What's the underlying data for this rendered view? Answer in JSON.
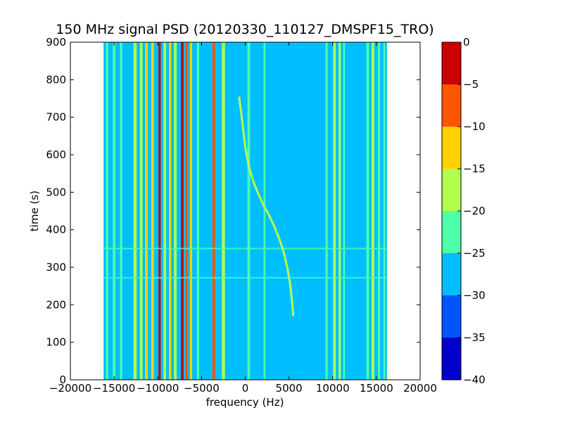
{
  "chart_data": {
    "type": "heatmap",
    "title": "150 MHz signal PSD (20120330_110127_DMSPF15_TRO)",
    "xlabel": "frequency (Hz)",
    "ylabel": "time (s)",
    "xlim": [
      -20000,
      20000
    ],
    "ylim": [
      0,
      900
    ],
    "x_ticks": [
      -20000,
      -15000,
      -10000,
      -5000,
      0,
      5000,
      10000,
      15000,
      20000
    ],
    "x_tick_labels": [
      "−20000",
      "−15000",
      "−10000",
      "−5000",
      "0",
      "5000",
      "10000",
      "15000",
      "20000"
    ],
    "y_ticks": [
      0,
      100,
      200,
      300,
      400,
      500,
      600,
      700,
      800,
      900
    ],
    "y_tick_labels": [
      "0",
      "100",
      "200",
      "300",
      "400",
      "500",
      "600",
      "700",
      "800",
      "900"
    ],
    "data_extent_x": [
      -16200,
      16200
    ],
    "background_level": -27.5,
    "vertical_bands": [
      {
        "freq": -15800,
        "width": 250,
        "level": -22.5
      },
      {
        "freq": -15000,
        "width": 300,
        "level": -22.5
      },
      {
        "freq": -14200,
        "width": 250,
        "level": -22.5
      },
      {
        "freq": -12600,
        "width": 350,
        "level": -17.5
      },
      {
        "freq": -11900,
        "width": 300,
        "level": -17.5
      },
      {
        "freq": -11300,
        "width": 300,
        "level": -12.5
      },
      {
        "freq": -10600,
        "width": 300,
        "level": -12.5
      },
      {
        "freq": -9800,
        "width": 250,
        "level": -2.5
      },
      {
        "freq": -9200,
        "width": 300,
        "level": -17.5
      },
      {
        "freq": -8600,
        "width": 250,
        "level": -12.5
      },
      {
        "freq": -8000,
        "width": 300,
        "level": -17.5
      },
      {
        "freq": -7200,
        "width": 300,
        "level": -2.5
      },
      {
        "freq": -6700,
        "width": 300,
        "level": -7.5
      },
      {
        "freq": -6200,
        "width": 250,
        "level": -12.5
      },
      {
        "freq": -5400,
        "width": 250,
        "level": -22.5
      },
      {
        "freq": -3600,
        "width": 300,
        "level": -7.5
      },
      {
        "freq": -2500,
        "width": 350,
        "level": -17.5
      },
      {
        "freq": 400,
        "width": 300,
        "level": -22.5
      },
      {
        "freq": 2200,
        "width": 200,
        "level": -22.5
      },
      {
        "freq": 9300,
        "width": 250,
        "level": -22.5
      },
      {
        "freq": 10200,
        "width": 300,
        "level": -17.5
      },
      {
        "freq": 10800,
        "width": 250,
        "level": -17.5
      },
      {
        "freq": 11300,
        "width": 200,
        "level": -22.5
      },
      {
        "freq": 14000,
        "width": 300,
        "level": -22.5
      },
      {
        "freq": 14600,
        "width": 300,
        "level": -17.5
      },
      {
        "freq": 15300,
        "width": 250,
        "level": -22.5
      },
      {
        "freq": 15900,
        "width": 200,
        "level": -22.5
      }
    ],
    "horizontal_streaks": [
      {
        "time": 272,
        "level": -22.5
      },
      {
        "time": 350,
        "level": -22.5
      }
    ],
    "doppler_trace": {
      "level": -17.5,
      "points": [
        [
          -700,
          755
        ],
        [
          -300,
          680
        ],
        [
          0,
          620
        ],
        [
          400,
          570
        ],
        [
          900,
          530
        ],
        [
          1500,
          495
        ],
        [
          2100,
          465
        ],
        [
          2700,
          440
        ],
        [
          3300,
          410
        ],
        [
          3900,
          375
        ],
        [
          4400,
          340
        ],
        [
          4800,
          300
        ],
        [
          5100,
          260
        ],
        [
          5300,
          220
        ],
        [
          5500,
          170
        ]
      ]
    },
    "colorbar": {
      "min": -40,
      "max": 0,
      "ticks": [
        0,
        -5,
        -10,
        -15,
        -20,
        -25,
        -30,
        -35,
        -40
      ],
      "tick_labels": [
        "0",
        "−5",
        "−10",
        "−15",
        "−20",
        "−25",
        "−30",
        "−35",
        "−40"
      ],
      "levels": [
        {
          "from": -40,
          "to": -35,
          "color": "#0000cc"
        },
        {
          "from": -35,
          "to": -30,
          "color": "#0055ff"
        },
        {
          "from": -30,
          "to": -25,
          "color": "#00bfff"
        },
        {
          "from": -25,
          "to": -20,
          "color": "#4dffaa"
        },
        {
          "from": -20,
          "to": -15,
          "color": "#b3ff4d"
        },
        {
          "from": -15,
          "to": -10,
          "color": "#ffd200"
        },
        {
          "from": -10,
          "to": -5,
          "color": "#ff5500"
        },
        {
          "from": -5,
          "to": 0,
          "color": "#cc0000"
        }
      ]
    }
  }
}
